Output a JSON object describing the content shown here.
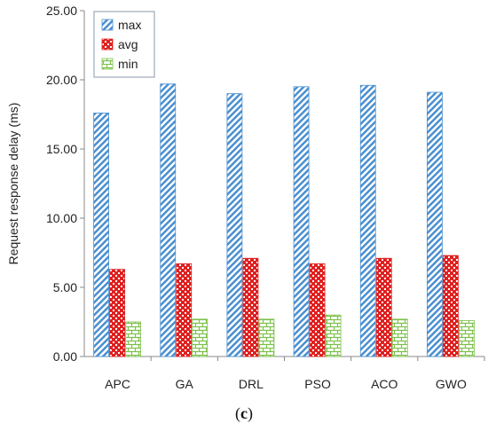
{
  "chart_data": {
    "type": "bar",
    "title": "",
    "xlabel": "",
    "ylabel": "Request response delay (ms)",
    "ylim": [
      0,
      25
    ],
    "yticks": [
      "0.00",
      "5.00",
      "10.00",
      "15.00",
      "20.00",
      "25.00"
    ],
    "categories": [
      "APC",
      "GA",
      "DRL",
      "PSO",
      "ACO",
      "GWO"
    ],
    "series": [
      {
        "name": "max",
        "values": [
          17.6,
          19.7,
          19.0,
          19.5,
          19.6,
          19.1
        ],
        "color": "#4a8fd0",
        "pattern": "diagonal-stripes"
      },
      {
        "name": "avg",
        "values": [
          6.3,
          6.7,
          7.1,
          6.7,
          7.1,
          7.3
        ],
        "color": "#e02020",
        "pattern": "dots"
      },
      {
        "name": "min",
        "values": [
          2.5,
          2.7,
          2.7,
          3.0,
          2.7,
          2.6
        ],
        "color": "#7cc04a",
        "pattern": "bricks"
      }
    ],
    "legend_position": "top-left",
    "grid": false
  },
  "caption": {
    "open": "(",
    "letter": "c",
    "close": ")"
  }
}
